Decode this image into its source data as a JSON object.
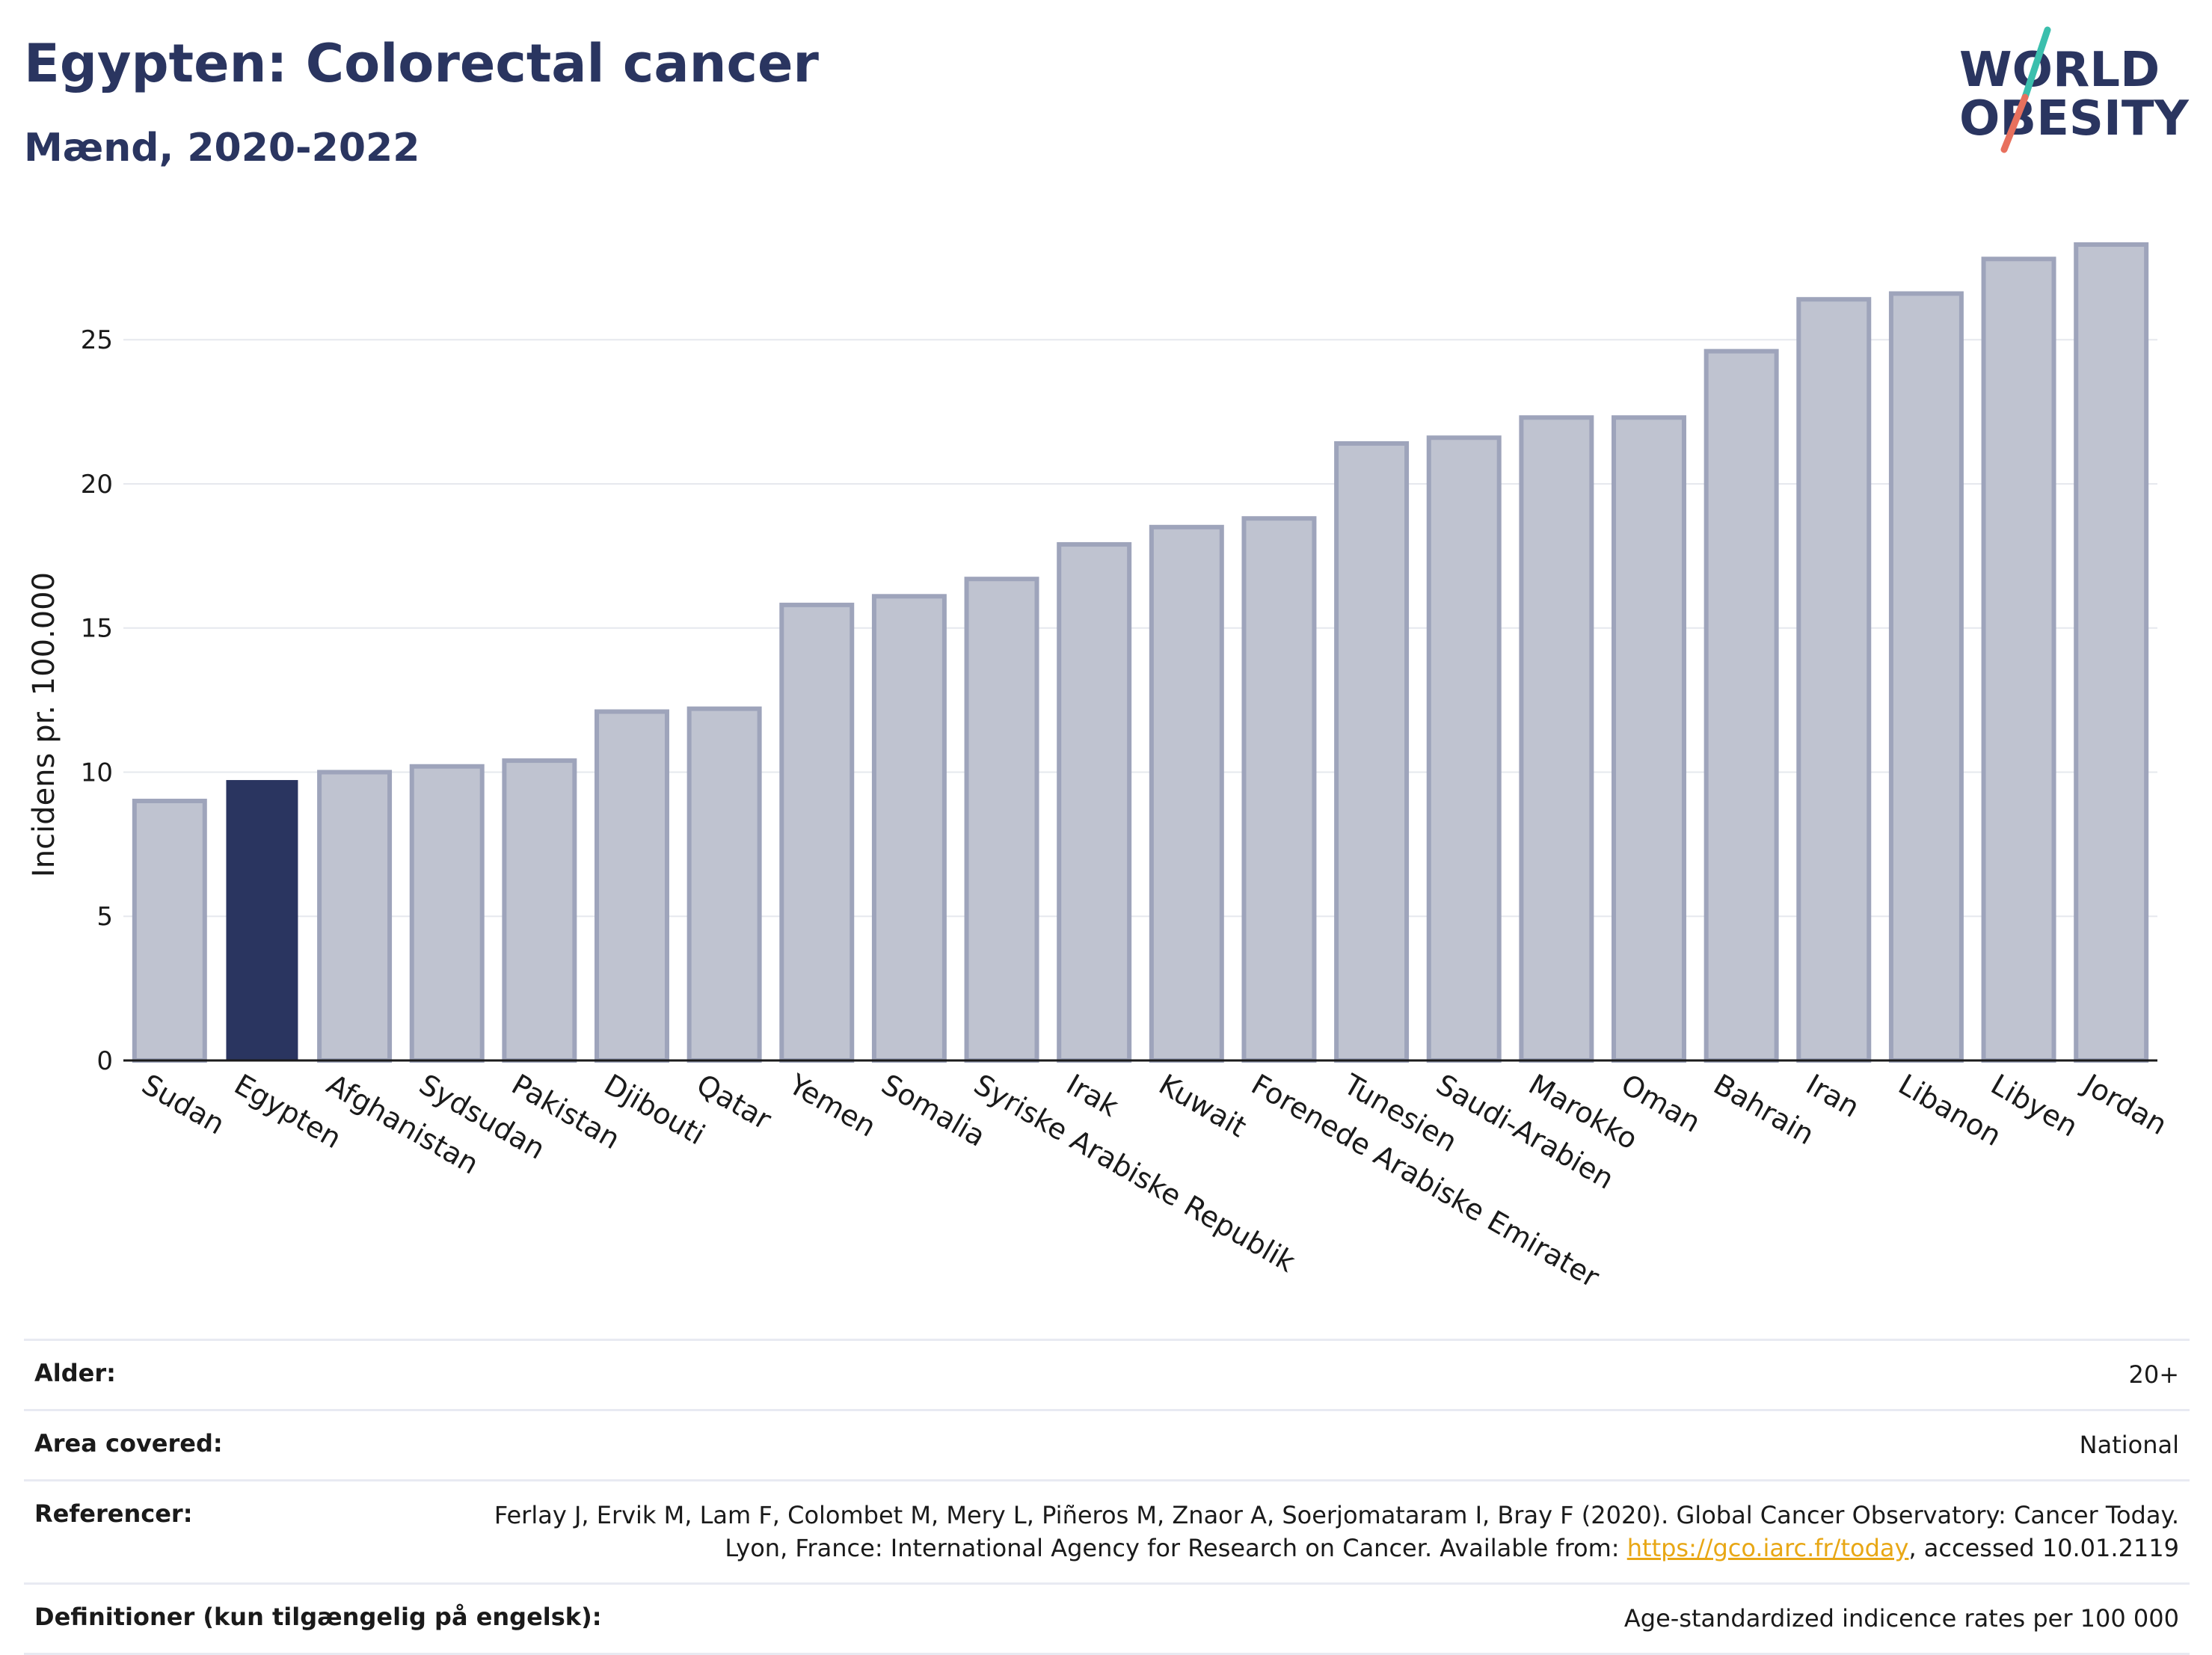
{
  "header": {
    "title": "Egypten: Colorectal cancer",
    "subtitle": "Mænd, 2020-2022"
  },
  "logo": {
    "line1": "WORLD",
    "line2": "OBESITY",
    "colors": {
      "text": "#2a3560",
      "slash_top": "#3bbfad",
      "slash_bottom": "#e8705d"
    }
  },
  "chart_data": {
    "type": "bar",
    "ylabel": "Incidens pr. 100.000",
    "ylim": [
      0,
      29
    ],
    "yticks": [
      0,
      5,
      10,
      15,
      20,
      25
    ],
    "grid": true,
    "highlight_category": "Egypten",
    "colors": {
      "bar": "#bfc3d0",
      "bar_edge": "#9ea4bb",
      "highlight": "#2a3560",
      "grid": "#e6e8ee",
      "axis": "#1a1a1a"
    },
    "categories": [
      "Sudan",
      "Egypten",
      "Afghanistan",
      "Sydsudan",
      "Pakistan",
      "Djibouti",
      "Qatar",
      "Yemen",
      "Somalia",
      "Syriske Arabiske Republik",
      "Irak",
      "Kuwait",
      "Forenede Arabiske Emirater",
      "Tunesien",
      "Saudi-Arabien",
      "Marokko",
      "Oman",
      "Bahrain",
      "Iran",
      "Libanon",
      "Libyen",
      "Jordan"
    ],
    "values": [
      9.0,
      9.7,
      10.0,
      10.2,
      10.4,
      12.1,
      12.2,
      15.8,
      16.1,
      16.7,
      17.9,
      18.5,
      18.8,
      21.4,
      21.6,
      22.3,
      22.3,
      24.6,
      26.4,
      26.6,
      27.8,
      28.3
    ]
  },
  "meta": {
    "rows": [
      {
        "key": "Alder:",
        "value": "20+"
      },
      {
        "key": "Area covered:",
        "value": "National"
      },
      {
        "key": "Referencer:",
        "value_before": "Ferlay J, Ervik M, Lam F, Colombet M, Mery L, Piñeros M, Znaor A, Soerjomataram I, Bray F (2020). Global Cancer Observatory: Cancer Today. Lyon, France: International Agency for Research on Cancer. Available from: ",
        "link": "https://gco.iarc.fr/today",
        "value_after": ", accessed 10.01.2119"
      },
      {
        "key": "Definitioner (kun tilgængelig på engelsk):",
        "value": "Age-standardized indicence rates per 100 000"
      }
    ]
  }
}
